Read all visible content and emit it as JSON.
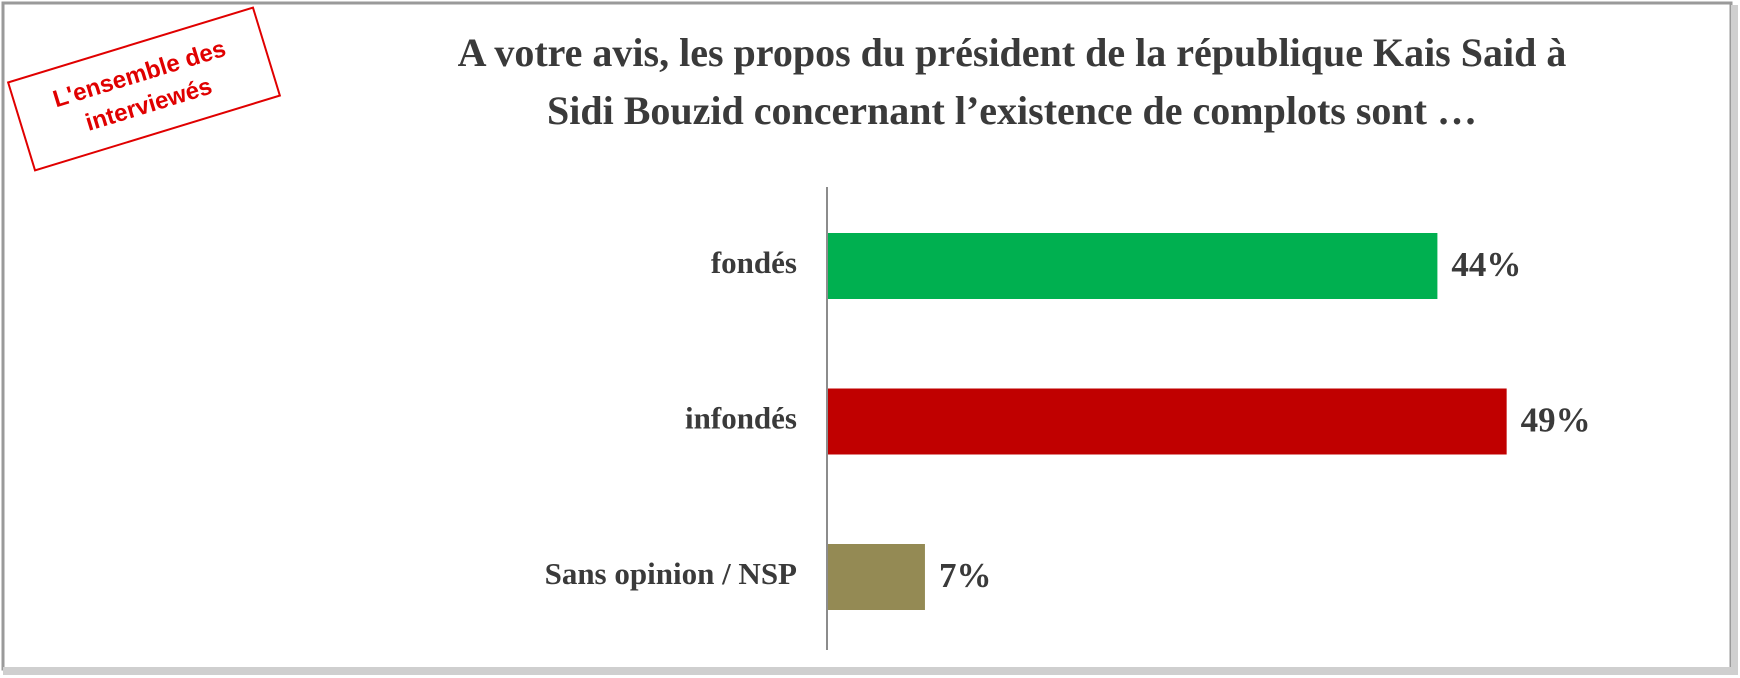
{
  "chart_data": {
    "type": "bar",
    "orientation": "horizontal",
    "title": [
      "A votre avis, les propos du président de la république Kais Said à",
      "Sidi Bouzid concernant l’existence de complots sont   …"
    ],
    "annotation": [
      "L'ensemble des",
      "interviewés"
    ],
    "categories": [
      "fondés",
      "infondés",
      "Sans opinion / NSP"
    ],
    "values": [
      44,
      49,
      7
    ],
    "value_labels": [
      "44%",
      "49%",
      "7%"
    ],
    "colors": [
      "#00b050",
      "#c00000",
      "#948a54"
    ]
  }
}
